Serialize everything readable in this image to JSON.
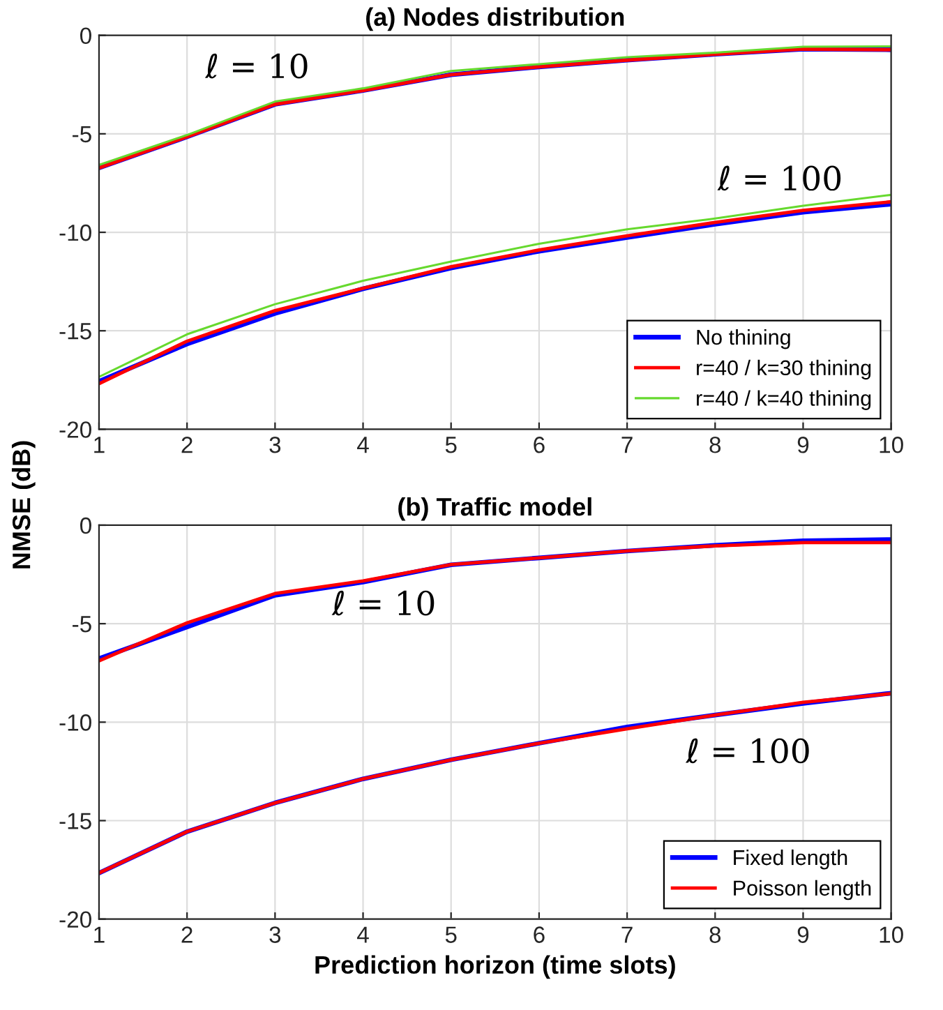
{
  "chart_data": [
    {
      "type": "line",
      "title": "(a) Nodes distribution",
      "ylabel": "NMSE (dB)",
      "x": [
        1,
        2,
        3,
        4,
        5,
        6,
        7,
        8,
        9,
        10
      ],
      "xlim": [
        1,
        10
      ],
      "xticks": [
        1,
        2,
        3,
        4,
        5,
        6,
        7,
        8,
        9,
        10
      ],
      "ylim": [
        -20,
        0
      ],
      "yticks": [
        -20,
        -15,
        -10,
        -5,
        0
      ],
      "grid": true,
      "legend": "bottom right",
      "marker": "none",
      "line_style": "solid",
      "series": [
        {
          "name": "No thining",
          "color": "#0000ff",
          "values": [
            -6.73,
            -5.15,
            -3.5,
            -2.8,
            -2.0,
            -1.6,
            -1.26,
            -0.96,
            -0.7,
            -0.73
          ]
        },
        {
          "name": "r=40 / k=30 thining",
          "color": "#ff0000",
          "values": [
            -6.73,
            -5.15,
            -3.5,
            -2.8,
            -2.0,
            -1.6,
            -1.26,
            -0.96,
            -0.7,
            -0.73
          ]
        },
        {
          "name": "r=40 / k=40 thining",
          "color": "#66d92e",
          "values": [
            -6.58,
            -5.06,
            -3.36,
            -2.69,
            -1.81,
            -1.46,
            -1.11,
            -0.88,
            -0.58,
            -0.56
          ]
        },
        {
          "color": "#0000ff",
          "values": [
            -17.57,
            -15.67,
            -14.12,
            -12.87,
            -11.81,
            -10.96,
            -10.26,
            -9.59,
            -8.98,
            -8.57
          ]
        },
        {
          "color": "#ff0000",
          "values": [
            -17.69,
            -15.53,
            -13.98,
            -12.84,
            -11.75,
            -10.9,
            -10.18,
            -9.5,
            -8.89,
            -8.45
          ]
        },
        {
          "color": "#66d92e",
          "values": [
            -17.34,
            -15.18,
            -13.65,
            -12.46,
            -11.49,
            -10.58,
            -9.85,
            -9.3,
            -8.65,
            -8.1
          ]
        }
      ],
      "annotations": [
        "ℓ = 10",
        "ℓ = 100"
      ]
    },
    {
      "type": "line",
      "title": "(b) Traffic model",
      "xlabel": "Prediction horizon (time slots)",
      "x": [
        1,
        2,
        3,
        4,
        5,
        6,
        7,
        8,
        9,
        10
      ],
      "xlim": [
        1,
        10
      ],
      "xticks": [
        1,
        2,
        3,
        4,
        5,
        6,
        7,
        8,
        9,
        10
      ],
      "ylim": [
        -20,
        0
      ],
      "yticks": [
        -20,
        -15,
        -10,
        -5,
        0
      ],
      "grid": true,
      "legend": "bottom right",
      "marker": "none",
      "line_style": "solid",
      "series": [
        {
          "name": "Fixed length",
          "color": "#0000ff",
          "values": [
            -6.77,
            -5.17,
            -3.56,
            -2.89,
            -2.01,
            -1.66,
            -1.31,
            -1.02,
            -0.79,
            -0.73
          ]
        },
        {
          "name": "Poisson length",
          "color": "#ff0000",
          "values": [
            -6.89,
            -4.96,
            -3.47,
            -2.83,
            -2.0,
            -1.66,
            -1.31,
            -1.05,
            -0.88,
            -0.88
          ]
        },
        {
          "color": "#0000ff",
          "values": [
            -17.66,
            -15.56,
            -14.1,
            -12.88,
            -11.91,
            -11.07,
            -10.25,
            -9.64,
            -9.05,
            -8.53
          ]
        },
        {
          "color": "#ff0000",
          "values": [
            -17.66,
            -15.56,
            -14.1,
            -12.88,
            -11.91,
            -11.07,
            -10.34,
            -9.64,
            -8.99,
            -8.55
          ]
        }
      ],
      "annotations": [
        "ℓ = 10",
        "ℓ = 100"
      ]
    }
  ]
}
